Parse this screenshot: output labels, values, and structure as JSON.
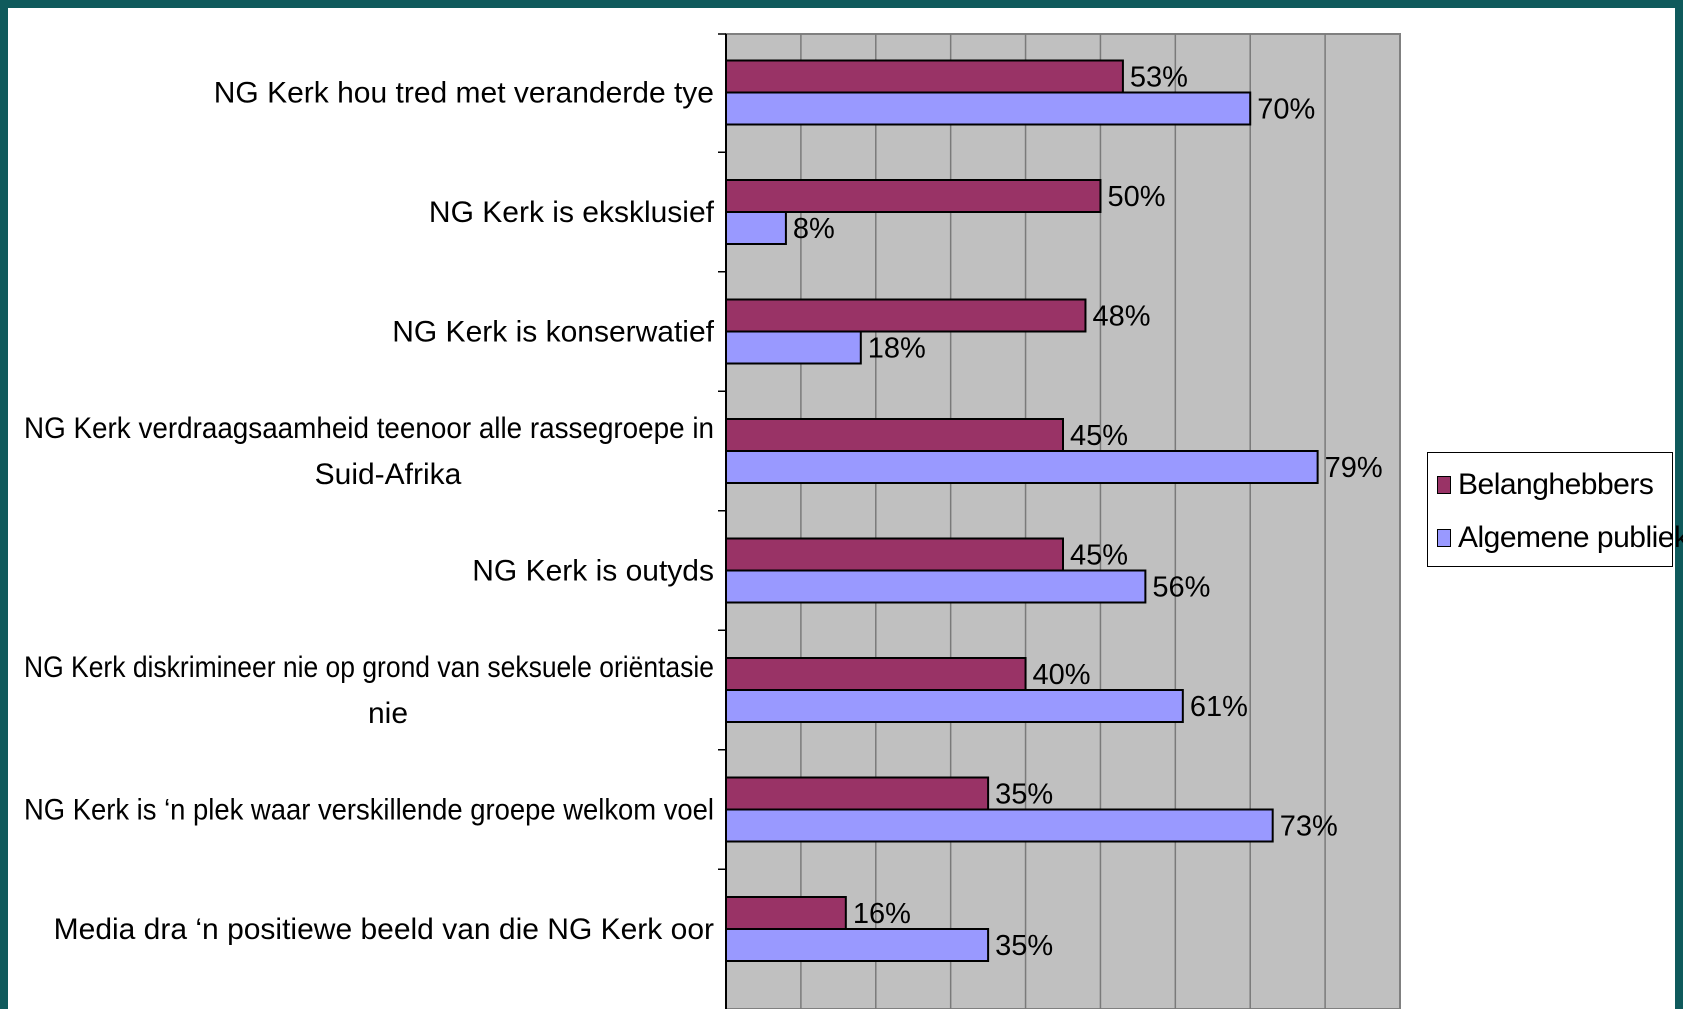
{
  "chart_data": {
    "type": "bar",
    "orientation": "horizontal",
    "categories": [
      "NG Kerk hou tred met veranderde tye",
      "NG Kerk is eksklusief",
      "NG Kerk is konserwatief",
      "NG Kerk verdraagsaamheid teenoor alle rassegroepe in Suid-Afrika",
      "NG Kerk is outyds",
      "NG Kerk diskrimineer nie op grond van seksuele oriëntasie nie",
      "NG Kerk is ‘n plek waar verskillende groepe welkom voel",
      "Media dra ‘n positiewe beeld van die NG Kerk oor"
    ],
    "category_lines": [
      [
        "NG Kerk hou tred met veranderde tye"
      ],
      [
        "NG Kerk is eksklusief"
      ],
      [
        "NG Kerk is konserwatief"
      ],
      [
        "NG Kerk verdraagsaamheid teenoor alle rassegroepe in",
        "Suid-Afrika"
      ],
      [
        "NG Kerk is outyds"
      ],
      [
        "NG Kerk diskrimineer nie op grond van seksuele oriëntasie",
        "nie"
      ],
      [
        "NG Kerk is ‘n plek waar verskillende groepe welkom voel"
      ],
      [
        "Media dra ‘n positiewe beeld van die NG Kerk oor"
      ]
    ],
    "series": [
      {
        "name": "Belanghebbers",
        "color": "#993366",
        "values": [
          53,
          50,
          48,
          45,
          45,
          40,
          35,
          16
        ],
        "labels": [
          "53%",
          "50%",
          "48%",
          "45%",
          "45%",
          "40%",
          "35%",
          "16%"
        ]
      },
      {
        "name": "Algemene publiek",
        "color": "#9999ff",
        "values": [
          70,
          8,
          18,
          79,
          56,
          61,
          73,
          35
        ],
        "labels": [
          "70%",
          "8%",
          "18%",
          "79%",
          "56%",
          "61%",
          "73%",
          "35%"
        ]
      }
    ],
    "xlim": [
      0,
      90
    ],
    "grid_step": 10,
    "grid": true,
    "plot_background": "#c0c0c0",
    "legend_position": "right"
  }
}
